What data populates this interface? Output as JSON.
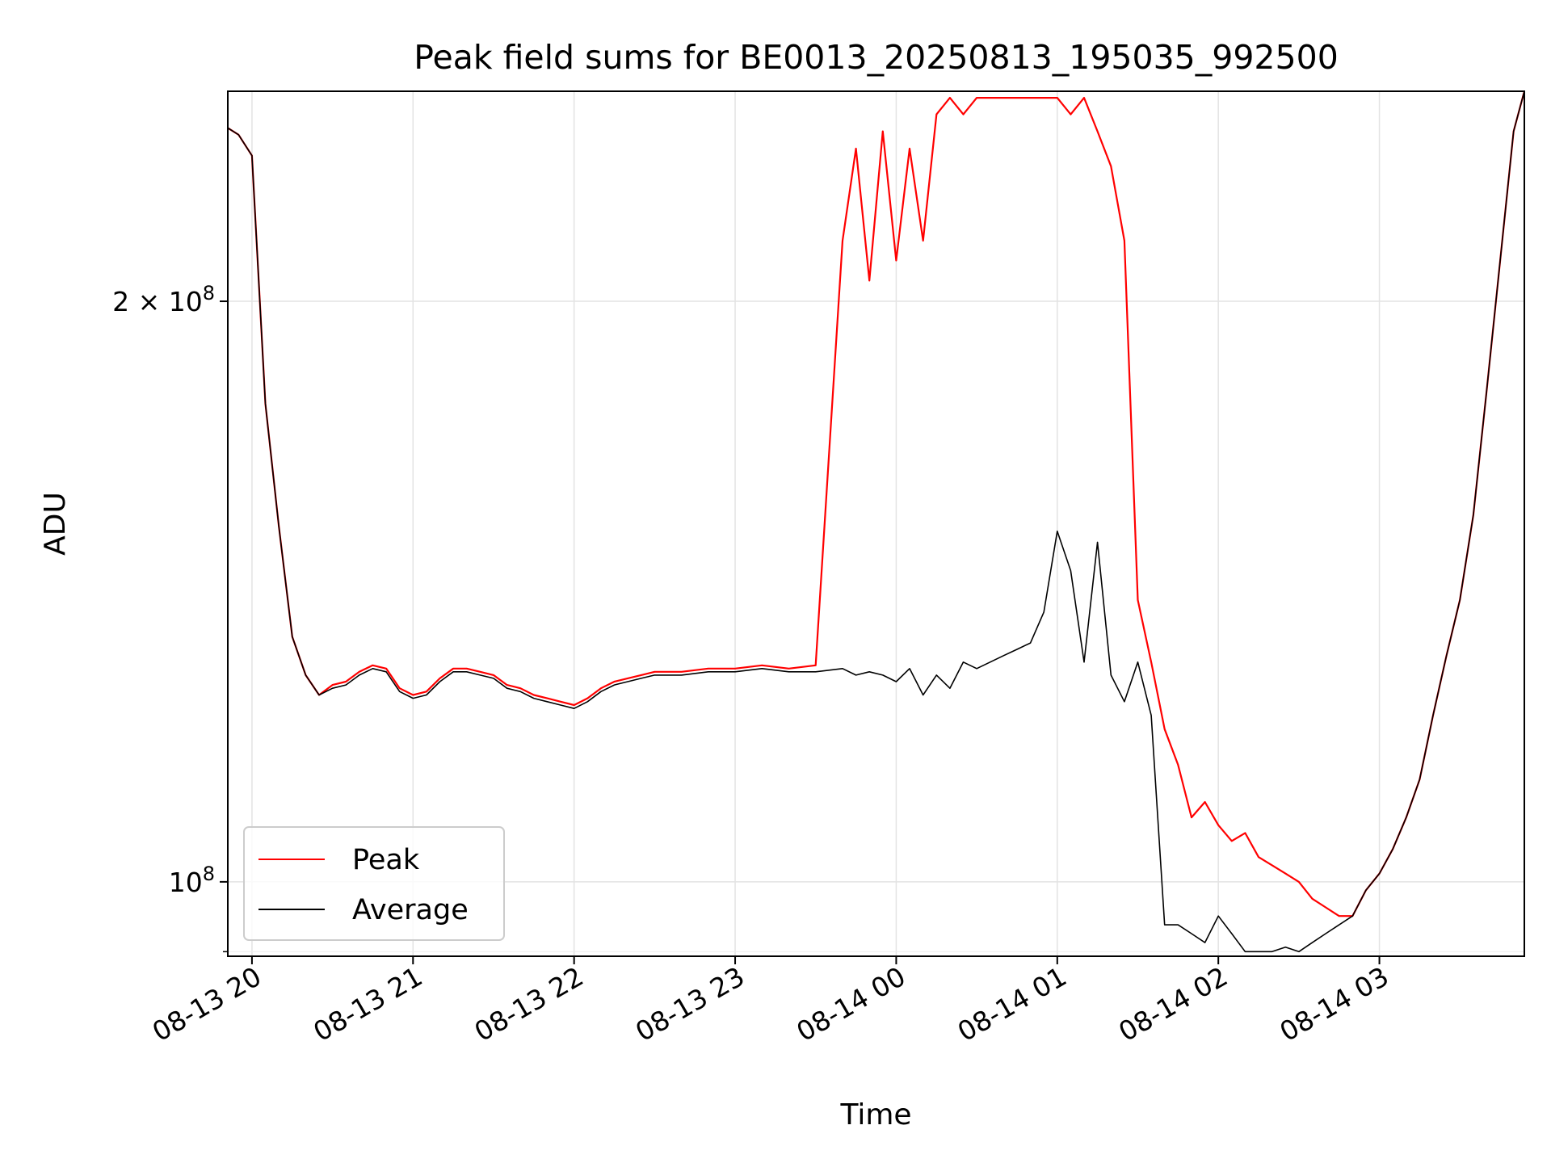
{
  "chart_data": {
    "type": "line",
    "title": "Peak field sums for BE0013_20250813_195035_992500",
    "xlabel": "Time",
    "ylabel": "ADU",
    "yscale": "log",
    "xlim": [
      "2025-08-13 19:51",
      "2025-08-14 03:54"
    ],
    "ylim": [
      91500000,
      257000000
    ],
    "x_ticks": [
      "08-13 20",
      "08-13 21",
      "08-13 22",
      "08-13 23",
      "08-14 00",
      "08-14 01",
      "08-14 02",
      "08-14 03"
    ],
    "y_ticks_major": [
      {
        "value": 200000000,
        "label": "2 × 10^8"
      },
      {
        "value": 100000000,
        "label": "10^8"
      }
    ],
    "grid": true,
    "legend": {
      "position": "lower-left"
    },
    "series": [
      {
        "name": "Peak",
        "color": "#ff0000",
        "x": [
          "19:51",
          "19:55",
          "20:00",
          "20:05",
          "20:10",
          "20:15",
          "20:20",
          "20:25",
          "20:30",
          "20:35",
          "20:40",
          "20:45",
          "20:50",
          "20:55",
          "21:00",
          "21:05",
          "21:10",
          "21:15",
          "21:20",
          "21:25",
          "21:30",
          "21:35",
          "21:40",
          "21:45",
          "21:50",
          "21:55",
          "22:00",
          "22:05",
          "22:10",
          "22:15",
          "22:20",
          "22:25",
          "22:30",
          "22:40",
          "22:50",
          "23:00",
          "23:10",
          "23:20",
          "23:30",
          "23:40",
          "23:45",
          "23:50",
          "23:55",
          "00:00",
          "00:05",
          "00:10",
          "00:15",
          "00:20",
          "00:25",
          "00:30",
          "00:35",
          "00:40",
          "00:45",
          "00:50",
          "00:55",
          "01:00",
          "01:05",
          "01:10",
          "01:15",
          "01:20",
          "01:25",
          "01:30",
          "01:35",
          "01:40",
          "01:45",
          "01:50",
          "01:55",
          "02:00",
          "02:05",
          "02:10",
          "02:15",
          "02:20",
          "02:25",
          "02:30",
          "02:35",
          "02:40",
          "02:45",
          "02:50",
          "02:55",
          "03:00",
          "03:05",
          "03:10",
          "03:15",
          "03:20",
          "03:25",
          "03:30",
          "03:35",
          "03:40",
          "03:45",
          "03:50",
          "03:54"
        ],
        "values": [
          246000000,
          244000000,
          238000000,
          177000000,
          153000000,
          134000000,
          128000000,
          125000000,
          126500000,
          127000000,
          128500000,
          129500000,
          129000000,
          126000000,
          125000000,
          125500000,
          127500000,
          129000000,
          129000000,
          128500000,
          128000000,
          126500000,
          126000000,
          125000000,
          124500000,
          124000000,
          123500000,
          124500000,
          126000000,
          127000000,
          127500000,
          128000000,
          128500000,
          128500000,
          129000000,
          129000000,
          129500000,
          129000000,
          129500000,
          215000000,
          240000000,
          205000000,
          245000000,
          210000000,
          240000000,
          215000000,
          250000000,
          255000000,
          250000000,
          255000000,
          255000000,
          255000000,
          255000000,
          255000000,
          255000000,
          255000000,
          250000000,
          255000000,
          245000000,
          235000000,
          215000000,
          140000000,
          130000000,
          120000000,
          115000000,
          108000000,
          110000000,
          107000000,
          105000000,
          106000000,
          103000000,
          102000000,
          101000000,
          100000000,
          98000000,
          97000000,
          96000000,
          96000000,
          99000000,
          101000000,
          104000000,
          108000000,
          113000000,
          122000000,
          131000000,
          140000000,
          155000000,
          180000000,
          210000000,
          245000000,
          257000000
        ]
      },
      {
        "name": "Average",
        "color": "#000000",
        "x": [
          "19:51",
          "19:55",
          "20:00",
          "20:05",
          "20:10",
          "20:15",
          "20:20",
          "20:25",
          "20:30",
          "20:35",
          "20:40",
          "20:45",
          "20:50",
          "20:55",
          "21:00",
          "21:05",
          "21:10",
          "21:15",
          "21:20",
          "21:25",
          "21:30",
          "21:35",
          "21:40",
          "21:45",
          "21:50",
          "21:55",
          "22:00",
          "22:05",
          "22:10",
          "22:15",
          "22:20",
          "22:25",
          "22:30",
          "22:40",
          "22:50",
          "23:00",
          "23:10",
          "23:20",
          "23:30",
          "23:40",
          "23:45",
          "23:50",
          "23:55",
          "00:00",
          "00:05",
          "00:10",
          "00:15",
          "00:20",
          "00:25",
          "00:30",
          "00:35",
          "00:40",
          "00:45",
          "00:50",
          "00:55",
          "01:00",
          "01:05",
          "01:10",
          "01:15",
          "01:20",
          "01:25",
          "01:30",
          "01:35",
          "01:40",
          "01:45",
          "01:50",
          "01:55",
          "02:00",
          "02:05",
          "02:10",
          "02:15",
          "02:20",
          "02:25",
          "02:30",
          "02:35",
          "02:40",
          "02:45",
          "02:50",
          "02:55",
          "03:00",
          "03:05",
          "03:10",
          "03:15",
          "03:20",
          "03:25",
          "03:30",
          "03:35",
          "03:40",
          "03:45",
          "03:50",
          "03:54"
        ],
        "values": [
          246000000,
          244000000,
          238000000,
          177000000,
          153000000,
          134000000,
          128000000,
          125000000,
          126000000,
          126500000,
          128000000,
          129000000,
          128500000,
          125500000,
          124500000,
          125000000,
          127000000,
          128500000,
          128500000,
          128000000,
          127500000,
          126000000,
          125500000,
          124500000,
          124000000,
          123500000,
          123000000,
          124000000,
          125500000,
          126500000,
          127000000,
          127500000,
          128000000,
          128000000,
          128500000,
          128500000,
          129000000,
          128500000,
          128500000,
          129000000,
          128000000,
          128500000,
          128000000,
          127000000,
          129000000,
          125000000,
          128000000,
          126000000,
          130000000,
          129000000,
          130000000,
          131000000,
          132000000,
          133000000,
          138000000,
          152000000,
          145000000,
          130000000,
          150000000,
          128000000,
          124000000,
          130000000,
          122000000,
          95000000,
          95000000,
          94000000,
          93000000,
          96000000,
          94000000,
          92000000,
          92000000,
          92000000,
          92500000,
          92000000,
          93000000,
          94000000,
          95000000,
          96000000,
          99000000,
          101000000,
          104000000,
          108000000,
          113000000,
          122000000,
          131000000,
          140000000,
          155000000,
          180000000,
          210000000,
          245000000,
          257000000
        ]
      }
    ]
  }
}
